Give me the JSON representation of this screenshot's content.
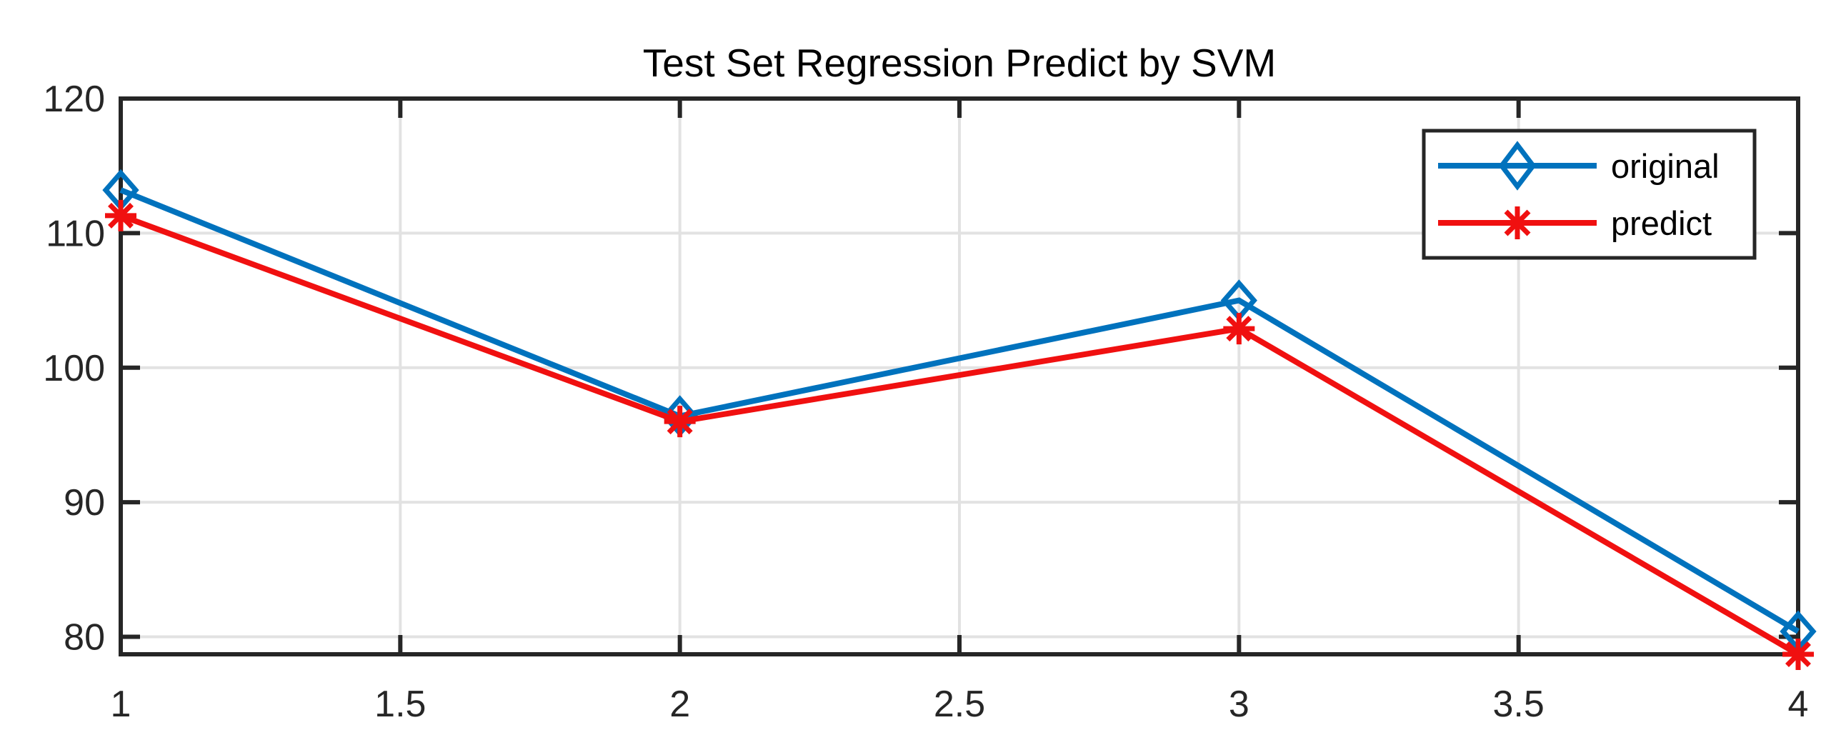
{
  "page": {
    "background": "#ffffff"
  },
  "chart_data": {
    "type": "line",
    "title": "Test Set Regression Predict by SVM",
    "xlabel": "",
    "ylabel": "",
    "x": [
      1,
      2,
      3,
      4
    ],
    "series": [
      {
        "name": "original",
        "color": "#0072BD",
        "marker": "diamond",
        "values": [
          113.2,
          96.4,
          105.0,
          80.4
        ]
      },
      {
        "name": "predict",
        "color": "#F01010",
        "marker": "asterisk",
        "values": [
          111.3,
          96.0,
          102.9,
          78.7
        ]
      }
    ],
    "xlim": [
      1,
      4
    ],
    "ylim": [
      78.7,
      120
    ],
    "xticks": [
      1,
      1.5,
      2,
      2.5,
      3,
      3.5,
      4
    ],
    "xtick_labels": [
      "1",
      "1.5",
      "2",
      "2.5",
      "3",
      "3.5",
      "4"
    ],
    "yticks": [
      80,
      90,
      100,
      110,
      120
    ],
    "ytick_labels": [
      "80",
      "90",
      "100",
      "110",
      "120"
    ],
    "grid": true,
    "legend": {
      "entries": [
        "original",
        "predict"
      ],
      "position": "top-right"
    },
    "colors": {
      "axis": "#262626",
      "grid": "#E2E2E2",
      "tick_label": "#262626",
      "title": "#000000",
      "legend_text": "#000000",
      "legend_border": "#262626",
      "plot_background": "#FFFFFF"
    }
  }
}
